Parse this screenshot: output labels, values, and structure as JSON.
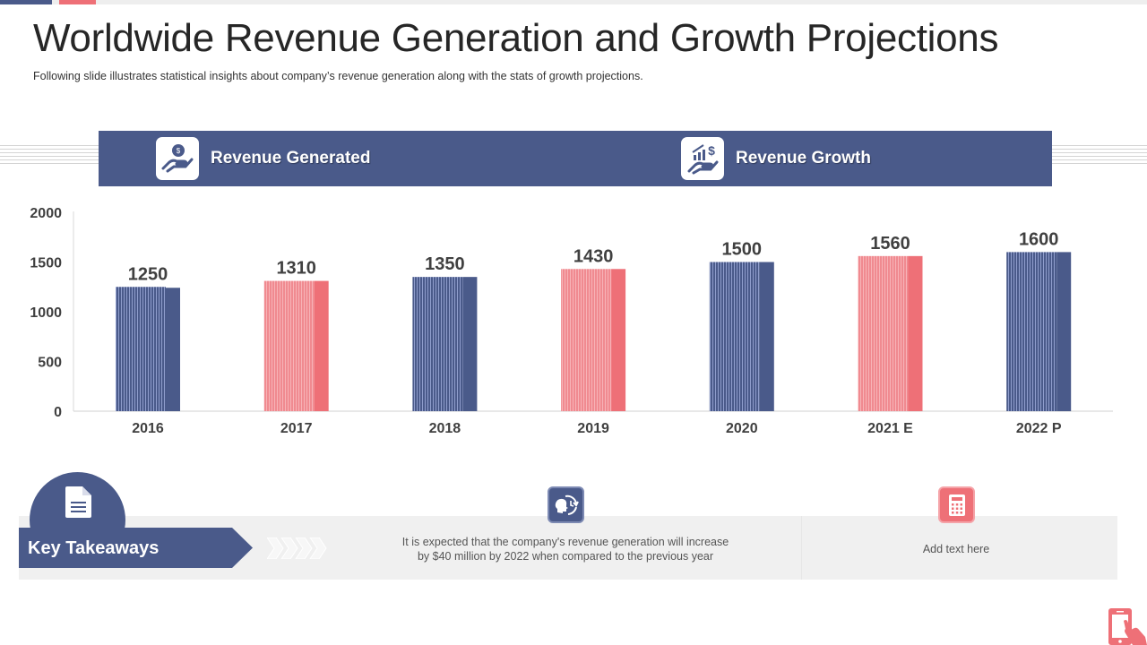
{
  "slide": {
    "title": "Worldwide Revenue Generation and Growth Projections",
    "subtitle": "Following slide illustrates statistical insights about company’s revenue  generation along with the stats of growth projections."
  },
  "header": {
    "left": {
      "label": "Revenue Generated",
      "icon": "hand-coin-icon"
    },
    "right": {
      "label": "Revenue Growth",
      "icon": "hand-growth-chart-icon"
    }
  },
  "colors": {
    "navy": "#4a5a8a",
    "coral": "#ee7077",
    "light_navy_stripe": "#8f9dcc",
    "light_coral_stripe": "#f7b3b7",
    "band_grey": "#f0f0f0"
  },
  "chart_data": {
    "type": "bar",
    "title": "",
    "xlabel": "",
    "ylabel": "",
    "categories": [
      "2016",
      "2017",
      "2018",
      "2019",
      "2020",
      "2021 E",
      "2022 P"
    ],
    "values": [
      1250,
      1310,
      1350,
      1430,
      1500,
      1560,
      1600
    ],
    "bar_colors": [
      "navy",
      "coral",
      "navy",
      "coral",
      "navy",
      "coral",
      "navy"
    ],
    "ylim": [
      0,
      2000
    ],
    "yticks": [
      0,
      500,
      1000,
      1500,
      2000
    ],
    "grid": false,
    "data_labels": true,
    "legend": "none"
  },
  "takeaways": {
    "label": "Key Takeaways",
    "items": [
      {
        "icon": "head-cycle-icon",
        "text_line1": "It is expected that the company's revenue  generation  will increase",
        "text_line2": "by $40 million  by 2022  when  compared to the previous  year"
      },
      {
        "icon": "calculator-icon",
        "text_line1": "Add text here",
        "text_line2": ""
      }
    ]
  }
}
